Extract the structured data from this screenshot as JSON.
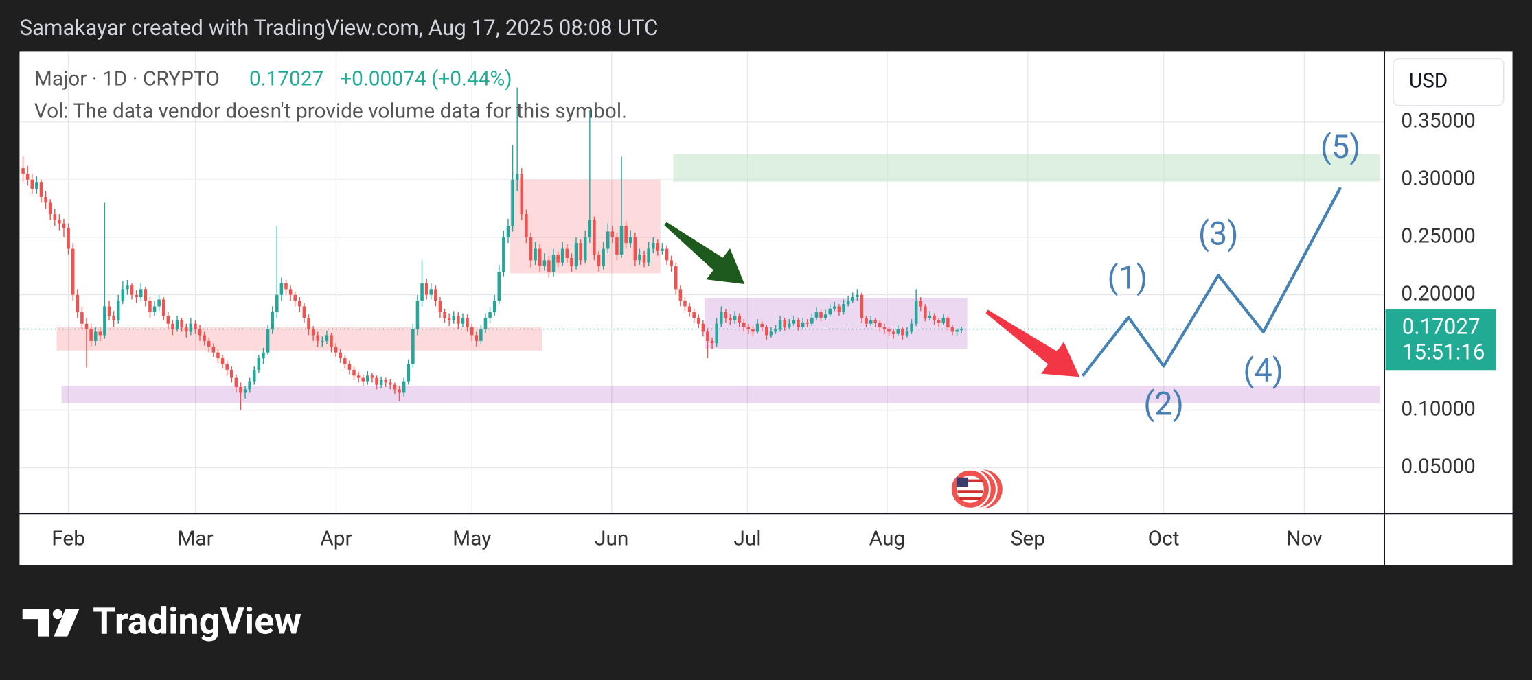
{
  "header": "Samakayar created with TradingView.com, Aug 17, 2025 08:08 UTC",
  "footer": "TradingView",
  "chart_data": {
    "type": "candlestick",
    "title": "Major · 1D · CRYPTO",
    "last_price": 0.17027,
    "change_text": "+0.00074 (+0.44%)",
    "subtitle": "Vol: The data vendor doesn't provide volume data for this symbol.",
    "currency": "USD",
    "countdown": "15:51:16",
    "up_color": "#26a69a",
    "down_color": "#ef5350",
    "grid": true,
    "ylim": [
      0.0102,
      0.411
    ],
    "yticks": [
      {
        "value": 0.05,
        "label": "0.05000"
      },
      {
        "value": 0.1,
        "label": "0.10000"
      },
      {
        "value": 0.2,
        "label": "0.20000"
      },
      {
        "value": 0.25,
        "label": "0.25000"
      },
      {
        "value": 0.3,
        "label": "0.30000"
      },
      {
        "value": 0.35,
        "label": "0.35000"
      }
    ],
    "categories": [
      "Feb",
      "Mar",
      "Apr",
      "May",
      "Jun",
      "Jul",
      "Aug",
      "Sep",
      "Oct",
      "Nov"
    ],
    "annotations": [
      "(1)",
      "(2)",
      "(3)",
      "(4)",
      "(5)"
    ],
    "candles": [
      [
        0.31,
        0.32,
        0.298,
        0.305
      ],
      [
        0.305,
        0.312,
        0.295,
        0.3
      ],
      [
        0.3,
        0.305,
        0.288,
        0.292
      ],
      [
        0.292,
        0.303,
        0.288,
        0.298
      ],
      [
        0.298,
        0.3,
        0.28,
        0.285
      ],
      [
        0.285,
        0.29,
        0.275,
        0.28
      ],
      [
        0.28,
        0.283,
        0.265,
        0.27
      ],
      [
        0.27,
        0.275,
        0.26,
        0.265
      ],
      [
        0.265,
        0.27,
        0.256,
        0.262
      ],
      [
        0.262,
        0.266,
        0.25,
        0.258
      ],
      [
        0.258,
        0.262,
        0.235,
        0.24
      ],
      [
        0.24,
        0.245,
        0.195,
        0.2
      ],
      [
        0.2,
        0.205,
        0.18,
        0.185
      ],
      [
        0.185,
        0.19,
        0.17,
        0.175
      ],
      [
        0.175,
        0.18,
        0.137,
        0.17
      ],
      [
        0.17,
        0.175,
        0.155,
        0.16
      ],
      [
        0.16,
        0.172,
        0.156,
        0.168
      ],
      [
        0.168,
        0.172,
        0.16,
        0.165
      ],
      [
        0.165,
        0.28,
        0.162,
        0.19
      ],
      [
        0.19,
        0.195,
        0.178,
        0.182
      ],
      [
        0.182,
        0.186,
        0.172,
        0.178
      ],
      [
        0.178,
        0.2,
        0.175,
        0.195
      ],
      [
        0.195,
        0.212,
        0.192,
        0.205
      ],
      [
        0.205,
        0.213,
        0.2,
        0.208
      ],
      [
        0.208,
        0.21,
        0.196,
        0.2
      ],
      [
        0.2,
        0.204,
        0.193,
        0.198
      ],
      [
        0.198,
        0.21,
        0.195,
        0.205
      ],
      [
        0.205,
        0.207,
        0.19,
        0.195
      ],
      [
        0.195,
        0.198,
        0.18,
        0.185
      ],
      [
        0.185,
        0.195,
        0.182,
        0.19
      ],
      [
        0.19,
        0.2,
        0.186,
        0.196
      ],
      [
        0.196,
        0.198,
        0.178,
        0.182
      ],
      [
        0.182,
        0.185,
        0.17,
        0.175
      ],
      [
        0.175,
        0.178,
        0.165,
        0.17
      ],
      [
        0.17,
        0.182,
        0.168,
        0.178
      ],
      [
        0.178,
        0.18,
        0.168,
        0.172
      ],
      [
        0.172,
        0.175,
        0.163,
        0.168
      ],
      [
        0.168,
        0.18,
        0.165,
        0.175
      ],
      [
        0.175,
        0.178,
        0.166,
        0.17
      ],
      [
        0.17,
        0.174,
        0.16,
        0.165
      ],
      [
        0.165,
        0.168,
        0.156,
        0.16
      ],
      [
        0.16,
        0.163,
        0.15,
        0.155
      ],
      [
        0.155,
        0.158,
        0.146,
        0.15
      ],
      [
        0.15,
        0.153,
        0.141,
        0.145
      ],
      [
        0.145,
        0.148,
        0.136,
        0.14
      ],
      [
        0.14,
        0.143,
        0.13,
        0.135
      ],
      [
        0.135,
        0.138,
        0.124,
        0.128
      ],
      [
        0.128,
        0.131,
        0.115,
        0.12
      ],
      [
        0.12,
        0.124,
        0.1,
        0.115
      ],
      [
        0.115,
        0.121,
        0.11,
        0.118
      ],
      [
        0.118,
        0.128,
        0.115,
        0.125
      ],
      [
        0.125,
        0.138,
        0.122,
        0.135
      ],
      [
        0.135,
        0.148,
        0.132,
        0.145
      ],
      [
        0.145,
        0.154,
        0.14,
        0.15
      ],
      [
        0.15,
        0.174,
        0.148,
        0.17
      ],
      [
        0.17,
        0.19,
        0.166,
        0.185
      ],
      [
        0.185,
        0.26,
        0.18,
        0.2
      ],
      [
        0.2,
        0.215,
        0.195,
        0.21
      ],
      [
        0.21,
        0.213,
        0.2,
        0.205
      ],
      [
        0.205,
        0.208,
        0.195,
        0.2
      ],
      [
        0.2,
        0.203,
        0.19,
        0.195
      ],
      [
        0.195,
        0.198,
        0.185,
        0.19
      ],
      [
        0.19,
        0.193,
        0.176,
        0.18
      ],
      [
        0.18,
        0.183,
        0.165,
        0.17
      ],
      [
        0.17,
        0.173,
        0.16,
        0.165
      ],
      [
        0.165,
        0.168,
        0.155,
        0.16
      ],
      [
        0.16,
        0.164,
        0.155,
        0.16
      ],
      [
        0.16,
        0.169,
        0.157,
        0.165
      ],
      [
        0.165,
        0.167,
        0.15,
        0.155
      ],
      [
        0.155,
        0.158,
        0.146,
        0.15
      ],
      [
        0.15,
        0.153,
        0.141,
        0.145
      ],
      [
        0.145,
        0.148,
        0.136,
        0.14
      ],
      [
        0.14,
        0.143,
        0.131,
        0.135
      ],
      [
        0.135,
        0.138,
        0.126,
        0.13
      ],
      [
        0.13,
        0.133,
        0.124,
        0.128
      ],
      [
        0.128,
        0.131,
        0.121,
        0.125
      ],
      [
        0.125,
        0.134,
        0.122,
        0.13
      ],
      [
        0.13,
        0.132,
        0.124,
        0.128
      ],
      [
        0.128,
        0.13,
        0.118,
        0.122
      ],
      [
        0.122,
        0.129,
        0.119,
        0.126
      ],
      [
        0.126,
        0.128,
        0.12,
        0.124
      ],
      [
        0.124,
        0.127,
        0.118,
        0.122
      ],
      [
        0.122,
        0.124,
        0.114,
        0.118
      ],
      [
        0.118,
        0.121,
        0.108,
        0.115
      ],
      [
        0.115,
        0.128,
        0.112,
        0.125
      ],
      [
        0.125,
        0.144,
        0.122,
        0.14
      ],
      [
        0.14,
        0.175,
        0.137,
        0.17
      ],
      [
        0.17,
        0.2,
        0.165,
        0.195
      ],
      [
        0.195,
        0.23,
        0.19,
        0.21
      ],
      [
        0.21,
        0.214,
        0.196,
        0.2
      ],
      [
        0.2,
        0.21,
        0.196,
        0.205
      ],
      [
        0.205,
        0.208,
        0.19,
        0.195
      ],
      [
        0.195,
        0.198,
        0.18,
        0.185
      ],
      [
        0.185,
        0.188,
        0.176,
        0.18
      ],
      [
        0.18,
        0.184,
        0.173,
        0.178
      ],
      [
        0.178,
        0.186,
        0.175,
        0.182
      ],
      [
        0.182,
        0.185,
        0.17,
        0.175
      ],
      [
        0.175,
        0.184,
        0.172,
        0.18
      ],
      [
        0.18,
        0.183,
        0.168,
        0.172
      ],
      [
        0.172,
        0.175,
        0.16,
        0.165
      ],
      [
        0.165,
        0.168,
        0.155,
        0.16
      ],
      [
        0.16,
        0.174,
        0.157,
        0.17
      ],
      [
        0.17,
        0.184,
        0.167,
        0.18
      ],
      [
        0.18,
        0.189,
        0.176,
        0.185
      ],
      [
        0.185,
        0.2,
        0.182,
        0.195
      ],
      [
        0.195,
        0.226,
        0.192,
        0.22
      ],
      [
        0.22,
        0.256,
        0.216,
        0.25
      ],
      [
        0.25,
        0.266,
        0.245,
        0.26
      ],
      [
        0.26,
        0.33,
        0.255,
        0.3
      ],
      [
        0.3,
        0.38,
        0.29,
        0.305
      ],
      [
        0.305,
        0.31,
        0.265,
        0.27
      ],
      [
        0.27,
        0.274,
        0.245,
        0.25
      ],
      [
        0.25,
        0.254,
        0.224,
        0.23
      ],
      [
        0.23,
        0.246,
        0.226,
        0.24
      ],
      [
        0.24,
        0.244,
        0.22,
        0.225
      ],
      [
        0.225,
        0.236,
        0.221,
        0.23
      ],
      [
        0.23,
        0.234,
        0.215,
        0.22
      ],
      [
        0.22,
        0.24,
        0.216,
        0.235
      ],
      [
        0.235,
        0.238,
        0.224,
        0.228
      ],
      [
        0.228,
        0.246,
        0.225,
        0.24
      ],
      [
        0.24,
        0.244,
        0.228,
        0.232
      ],
      [
        0.232,
        0.236,
        0.22,
        0.225
      ],
      [
        0.225,
        0.25,
        0.222,
        0.245
      ],
      [
        0.245,
        0.248,
        0.226,
        0.23
      ],
      [
        0.23,
        0.256,
        0.227,
        0.25
      ],
      [
        0.25,
        0.36,
        0.245,
        0.265
      ],
      [
        0.265,
        0.268,
        0.23,
        0.235
      ],
      [
        0.235,
        0.238,
        0.22,
        0.225
      ],
      [
        0.225,
        0.246,
        0.222,
        0.24
      ],
      [
        0.24,
        0.262,
        0.236,
        0.255
      ],
      [
        0.255,
        0.26,
        0.245,
        0.25
      ],
      [
        0.25,
        0.254,
        0.23,
        0.235
      ],
      [
        0.235,
        0.32,
        0.232,
        0.26
      ],
      [
        0.26,
        0.264,
        0.24,
        0.245
      ],
      [
        0.245,
        0.256,
        0.241,
        0.25
      ],
      [
        0.25,
        0.254,
        0.225,
        0.23
      ],
      [
        0.23,
        0.24,
        0.226,
        0.235
      ],
      [
        0.235,
        0.238,
        0.224,
        0.228
      ],
      [
        0.228,
        0.246,
        0.225,
        0.24
      ],
      [
        0.24,
        0.25,
        0.236,
        0.245
      ],
      [
        0.245,
        0.248,
        0.234,
        0.238
      ],
      [
        0.238,
        0.245,
        0.235,
        0.24
      ],
      [
        0.24,
        0.243,
        0.226,
        0.23
      ],
      [
        0.23,
        0.234,
        0.22,
        0.225
      ],
      [
        0.225,
        0.228,
        0.2,
        0.205
      ],
      [
        0.205,
        0.208,
        0.19,
        0.195
      ],
      [
        0.195,
        0.198,
        0.186,
        0.19
      ],
      [
        0.19,
        0.193,
        0.181,
        0.185
      ],
      [
        0.185,
        0.188,
        0.176,
        0.18
      ],
      [
        0.18,
        0.183,
        0.171,
        0.175
      ],
      [
        0.175,
        0.178,
        0.164,
        0.168
      ],
      [
        0.168,
        0.171,
        0.145,
        0.16
      ],
      [
        0.16,
        0.163,
        0.153,
        0.158
      ],
      [
        0.158,
        0.18,
        0.155,
        0.175
      ],
      [
        0.175,
        0.19,
        0.172,
        0.185
      ],
      [
        0.185,
        0.188,
        0.176,
        0.18
      ],
      [
        0.18,
        0.183,
        0.174,
        0.178
      ],
      [
        0.178,
        0.186,
        0.175,
        0.182
      ],
      [
        0.182,
        0.184,
        0.172,
        0.176
      ],
      [
        0.176,
        0.179,
        0.168,
        0.172
      ],
      [
        0.172,
        0.175,
        0.166,
        0.17
      ],
      [
        0.17,
        0.173,
        0.164,
        0.168
      ],
      [
        0.168,
        0.179,
        0.166,
        0.175
      ],
      [
        0.175,
        0.177,
        0.168,
        0.172
      ],
      [
        0.172,
        0.174,
        0.161,
        0.165
      ],
      [
        0.165,
        0.172,
        0.163,
        0.168
      ],
      [
        0.168,
        0.174,
        0.166,
        0.17
      ],
      [
        0.17,
        0.182,
        0.168,
        0.178
      ],
      [
        0.178,
        0.18,
        0.169,
        0.172
      ],
      [
        0.172,
        0.179,
        0.17,
        0.175
      ],
      [
        0.175,
        0.182,
        0.173,
        0.178
      ],
      [
        0.178,
        0.18,
        0.169,
        0.172
      ],
      [
        0.172,
        0.18,
        0.17,
        0.176
      ],
      [
        0.176,
        0.179,
        0.172,
        0.175
      ],
      [
        0.175,
        0.184,
        0.173,
        0.18
      ],
      [
        0.18,
        0.189,
        0.178,
        0.185
      ],
      [
        0.185,
        0.187,
        0.177,
        0.18
      ],
      [
        0.18,
        0.187,
        0.178,
        0.183
      ],
      [
        0.183,
        0.192,
        0.181,
        0.188
      ],
      [
        0.188,
        0.194,
        0.186,
        0.19
      ],
      [
        0.19,
        0.192,
        0.182,
        0.185
      ],
      [
        0.185,
        0.196,
        0.183,
        0.192
      ],
      [
        0.192,
        0.199,
        0.19,
        0.195
      ],
      [
        0.195,
        0.202,
        0.193,
        0.198
      ],
      [
        0.198,
        0.205,
        0.195,
        0.2
      ],
      [
        0.2,
        0.202,
        0.176,
        0.18
      ],
      [
        0.18,
        0.182,
        0.172,
        0.175
      ],
      [
        0.175,
        0.182,
        0.173,
        0.178
      ],
      [
        0.178,
        0.18,
        0.172,
        0.176
      ],
      [
        0.176,
        0.178,
        0.168,
        0.172
      ],
      [
        0.172,
        0.175,
        0.166,
        0.17
      ],
      [
        0.17,
        0.172,
        0.164,
        0.168
      ],
      [
        0.168,
        0.17,
        0.162,
        0.166
      ],
      [
        0.166,
        0.174,
        0.164,
        0.17
      ],
      [
        0.17,
        0.172,
        0.161,
        0.165
      ],
      [
        0.165,
        0.172,
        0.163,
        0.168
      ],
      [
        0.168,
        0.179,
        0.166,
        0.175
      ],
      [
        0.175,
        0.205,
        0.173,
        0.195
      ],
      [
        0.195,
        0.198,
        0.186,
        0.19
      ],
      [
        0.19,
        0.192,
        0.177,
        0.18
      ],
      [
        0.18,
        0.186,
        0.178,
        0.182
      ],
      [
        0.182,
        0.184,
        0.174,
        0.178
      ],
      [
        0.178,
        0.18,
        0.172,
        0.176
      ],
      [
        0.176,
        0.183,
        0.174,
        0.18
      ],
      [
        0.18,
        0.182,
        0.169,
        0.172
      ],
      [
        0.172,
        0.174,
        0.165,
        0.168
      ],
      [
        0.168,
        0.171,
        0.164,
        0.16953
      ],
      [
        0.16953,
        0.1725,
        0.1665,
        0.17027
      ]
    ]
  }
}
